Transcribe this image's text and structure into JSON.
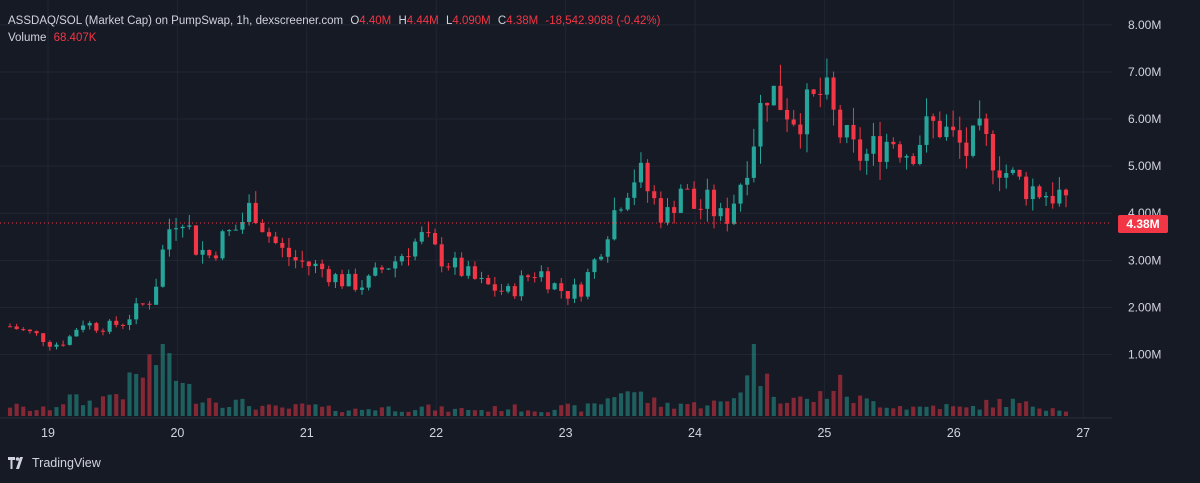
{
  "legend": {
    "symbol_title": "ASSDAQ/SOL (Market Cap) on PumpSwap, 1h, dexscreener.com",
    "open_key": "O",
    "open_value": "4.40M",
    "high_key": "H",
    "high_value": "4.44M",
    "low_key": "L",
    "low_value": "4.090M",
    "close_key": "C",
    "close_value": "4.38M",
    "change": "-18,542.9088 (-0.42%)",
    "volume_label": "Volume",
    "volume_value": "68.407K"
  },
  "price_tag": "4.38M",
  "brand": "TradingView",
  "colors": {
    "up": "#26a69a",
    "down": "#f23645",
    "background": "#161a25",
    "grid": "#222633",
    "text": "#d1d4dc"
  },
  "chart_data": {
    "type": "candlestick",
    "title": "ASSDAQ/SOL (Market Cap) on PumpSwap, 1h, dexscreener.com",
    "x_ticks": [
      "19",
      "20",
      "21",
      "22",
      "23",
      "24",
      "25",
      "26",
      "27"
    ],
    "y_ticks": [
      "1.00M",
      "2.00M",
      "3.00M",
      "4.00M",
      "5.00M",
      "6.00M",
      "7.00M",
      "8.00M"
    ],
    "y_range_millions": [
      0,
      8.4
    ],
    "current_price_millions": 4.38,
    "close_millions_sampled": [
      1.6,
      1.5,
      1.4,
      1.2,
      1.3,
      1.7,
      1.6,
      1.6,
      1.7,
      2.0,
      2.2,
      3.6,
      4.1,
      3.3,
      3.1,
      3.5,
      3.7,
      4.2,
      3.6,
      3.2,
      3.0,
      2.9,
      2.8,
      2.6,
      2.5,
      2.5,
      2.8,
      3.0,
      3.3,
      3.5,
      3.1,
      2.9,
      2.7,
      2.5,
      2.4,
      2.3,
      2.6,
      2.8,
      2.5,
      2.3,
      2.4,
      3.0,
      3.8,
      4.5,
      4.9,
      4.3,
      3.9,
      4.6,
      4.1,
      4.2,
      3.8,
      4.5,
      5.5,
      6.7,
      6.4,
      6.1,
      6.2,
      6.6,
      5.8,
      5.3,
      5.2,
      5.5,
      5.6,
      5.3,
      5.7,
      5.9,
      5.6,
      5.3,
      5.6,
      5.2,
      4.8,
      4.6,
      4.5,
      4.4,
      4.38
    ],
    "volume_sampled": [
      0.15,
      0.1,
      0.08,
      0.12,
      0.25,
      0.2,
      0.18,
      0.3,
      0.35,
      0.55,
      0.75,
      1.0,
      0.4,
      0.3,
      0.25,
      0.2,
      0.18,
      0.15,
      0.12,
      0.1,
      0.12,
      0.15,
      0.1,
      0.1,
      0.08,
      0.1,
      0.12,
      0.1,
      0.1,
      0.12,
      0.1,
      0.08,
      0.1,
      0.08,
      0.1,
      0.12,
      0.1,
      0.08,
      0.1,
      0.12,
      0.1,
      0.15,
      0.25,
      0.4,
      0.3,
      0.2,
      0.15,
      0.18,
      0.15,
      0.2,
      0.15,
      0.3,
      0.95,
      0.45,
      0.3,
      0.25,
      0.2,
      0.3,
      0.45,
      0.25,
      0.2,
      0.18,
      0.15,
      0.12,
      0.12,
      0.15,
      0.12,
      0.1,
      0.15,
      0.18,
      0.2,
      0.15,
      0.15,
      0.12,
      0.1
    ],
    "grid": true
  }
}
